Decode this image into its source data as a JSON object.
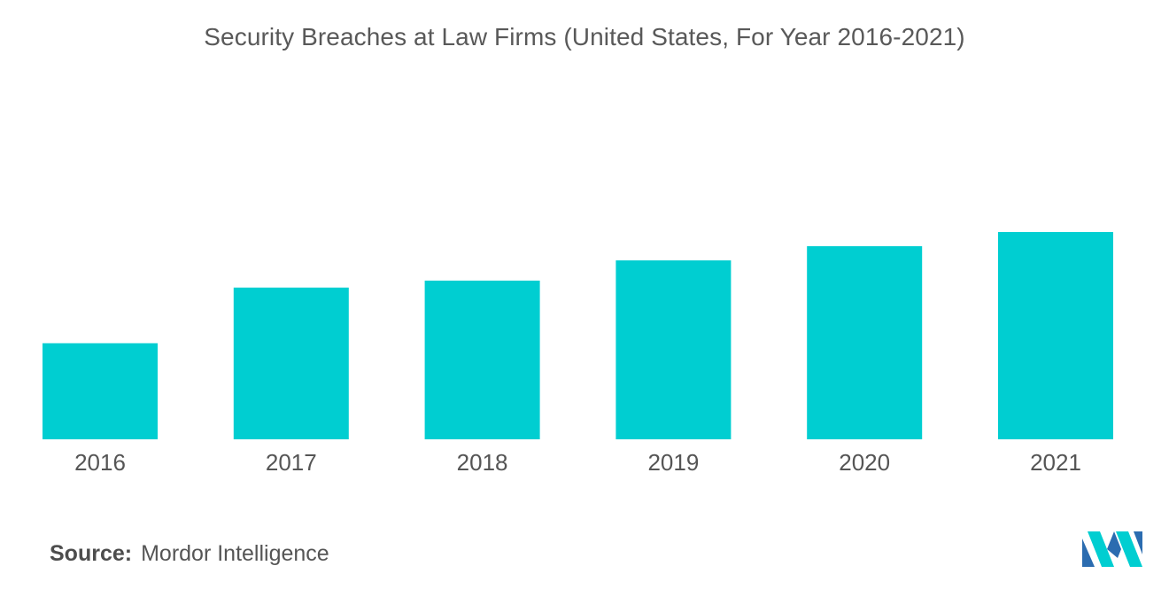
{
  "chart_data": {
    "type": "bar",
    "title": "Security Breaches at Law Firms (United States, For Year 2016-2021)",
    "xlabel": "",
    "ylabel": "",
    "categories": [
      "2016",
      "2017",
      "2018",
      "2019",
      "2020",
      "2021"
    ],
    "values": [
      109,
      172,
      180,
      203,
      219,
      235
    ],
    "ylim": [
      0,
      250
    ],
    "grid": false,
    "legend": "none",
    "bar_color": "#00ced1"
  },
  "source": {
    "label": "Source:",
    "value": "Mordor Intelligence"
  },
  "logo": {
    "icon": "mordor-intelligence-logo-icon",
    "colors": [
      "#00ced1",
      "#2b6cb0"
    ]
  }
}
